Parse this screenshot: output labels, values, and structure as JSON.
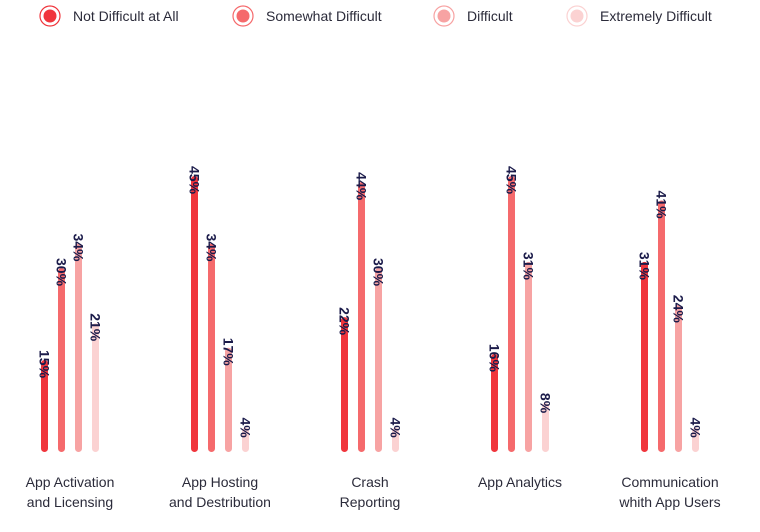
{
  "chart_data": {
    "type": "bar",
    "categories": [
      [
        "App Activation",
        "and Licensing"
      ],
      [
        "App Hosting",
        "and Destribution"
      ],
      [
        "Crash",
        "Reporting"
      ],
      [
        "App Analytics"
      ],
      [
        "Communication",
        "whith App Users"
      ]
    ],
    "series": [
      {
        "name": "Not Difficult at All",
        "color": "#f0353c",
        "values": [
          15,
          45,
          22,
          16,
          31
        ]
      },
      {
        "name": "Somewhat Difficult",
        "color": "#f56a6c",
        "values": [
          30,
          34,
          44,
          45,
          41
        ]
      },
      {
        "name": "Difficult",
        "color": "#f7a3a3",
        "values": [
          34,
          17,
          30,
          31,
          24
        ]
      },
      {
        "name": "Extremely Difficult",
        "color": "#fbd2d2",
        "values": [
          21,
          4,
          4,
          8,
          4
        ]
      }
    ],
    "value_suffix": "%",
    "ylim": [
      0,
      45
    ],
    "grid": false,
    "legend_position": "top",
    "title": "",
    "xlabel": "",
    "ylabel": ""
  }
}
